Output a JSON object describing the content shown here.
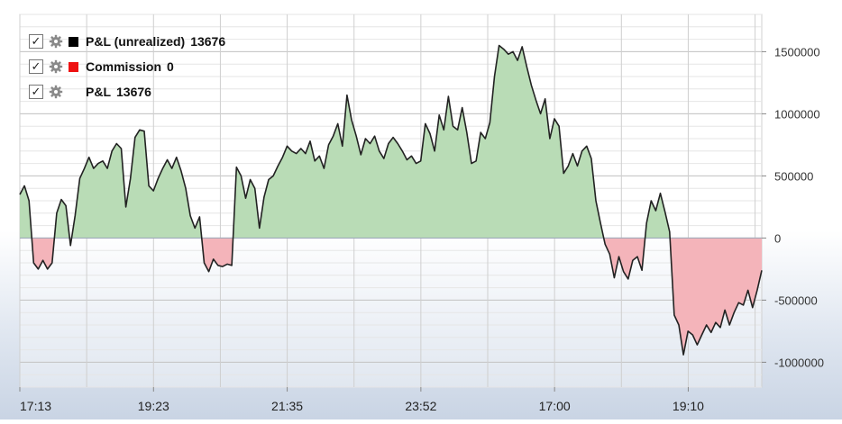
{
  "legend": [
    {
      "checked": true,
      "color": "#000000",
      "name": "P&L (unrealized)",
      "value": "13676"
    },
    {
      "checked": true,
      "color": "#ee1111",
      "name": "Commission",
      "value": "0"
    },
    {
      "checked": true,
      "color": null,
      "name": "P&L",
      "value": "13676"
    }
  ],
  "chart_data": {
    "type": "area",
    "y_ticks": [
      1500000,
      1000000,
      500000,
      0,
      -500000,
      -1000000
    ],
    "y_tick_labels": [
      "1500000",
      "1000000",
      "500000",
      "0",
      "-500000",
      "-1000000"
    ],
    "ylim": [
      -1200000,
      1800000
    ],
    "x_tick_labels": [
      "17:13",
      "19:23",
      "21:35",
      "23:52",
      "17:00",
      "19:10"
    ],
    "positive_fill": "#b9dcb6",
    "negative_fill": "#f4b4ba",
    "grid": true,
    "legend_position": "top-left",
    "series": [
      {
        "values": [
          350000,
          420000,
          300000,
          -200000,
          -250000,
          -180000,
          -250000,
          -200000,
          200000,
          310000,
          260000,
          -60000,
          180000,
          480000,
          560000,
          650000,
          560000,
          600000,
          620000,
          560000,
          700000,
          760000,
          720000,
          250000,
          480000,
          810000,
          870000,
          860000,
          420000,
          380000,
          480000,
          560000,
          630000,
          560000,
          650000,
          540000,
          400000,
          180000,
          80000,
          170000,
          -200000,
          -270000,
          -170000,
          -220000,
          -230000,
          -210000,
          -220000,
          570000,
          500000,
          320000,
          470000,
          400000,
          80000,
          330000,
          470000,
          500000,
          580000,
          650000,
          740000,
          700000,
          680000,
          720000,
          680000,
          780000,
          620000,
          660000,
          560000,
          750000,
          820000,
          920000,
          740000,
          1150000,
          950000,
          820000,
          670000,
          800000,
          760000,
          820000,
          700000,
          640000,
          760000,
          810000,
          760000,
          700000,
          630000,
          660000,
          600000,
          620000,
          920000,
          840000,
          700000,
          990000,
          870000,
          1140000,
          900000,
          870000,
          1050000,
          850000,
          600000,
          620000,
          850000,
          800000,
          930000,
          1300000,
          1550000,
          1520000,
          1480000,
          1500000,
          1430000,
          1540000,
          1380000,
          1230000,
          1110000,
          1000000,
          1120000,
          800000,
          960000,
          900000,
          520000,
          580000,
          680000,
          580000,
          700000,
          740000,
          640000,
          300000,
          120000,
          -50000,
          -130000,
          -320000,
          -150000,
          -270000,
          -330000,
          -180000,
          -150000,
          -260000,
          120000,
          300000,
          220000,
          360000,
          210000,
          50000,
          -620000,
          -700000,
          -940000,
          -750000,
          -780000,
          -860000,
          -780000,
          -700000,
          -760000,
          -680000,
          -720000,
          -580000,
          -700000,
          -600000,
          -520000,
          -540000,
          -420000,
          -560000,
          -420000,
          -260000
        ]
      }
    ]
  }
}
